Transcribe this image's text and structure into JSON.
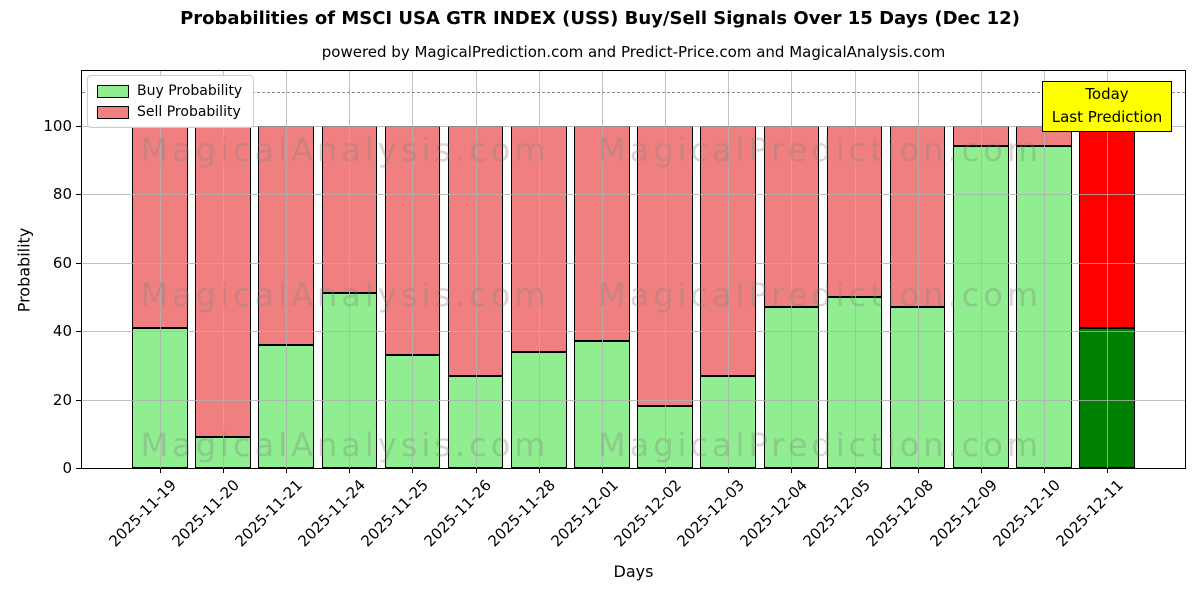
{
  "title": "Probabilities of MSCI USA GTR INDEX (USS) Buy/Sell Signals Over 15 Days (Dec 12)",
  "subtitle": "powered by MagicalPrediction.com and Predict-Price.com and MagicalAnalysis.com",
  "legend": {
    "items": [
      {
        "label": "Buy Probability",
        "color": "#90ee90"
      },
      {
        "label": "Sell Probability",
        "color": "#f08080"
      }
    ]
  },
  "today_box": {
    "line1": "Today",
    "line2": "Last Prediction",
    "bg_color": "#ffff00"
  },
  "axes": {
    "xlabel": "Days",
    "ylabel": "Probability",
    "yticks": [
      0,
      20,
      40,
      60,
      80,
      100
    ],
    "dashed_line_y": 110,
    "grid": true
  },
  "watermarks": {
    "left": "MagicalAnalysis.com",
    "right": "MagicalPrediction.com"
  },
  "colors": {
    "buy": "#90ee90",
    "sell": "#f08080",
    "buy_today": "#008000",
    "sell_today": "#ff0000",
    "bar_edge": "#000000",
    "grid": "#b0b0b0",
    "annotation_bg": "#ffff00"
  },
  "chart_data": {
    "type": "bar",
    "stacked": true,
    "title": "Probabilities of MSCI USA GTR INDEX (USS) Buy/Sell Signals Over 15 Days (Dec 12)",
    "xlabel": "Days",
    "ylabel": "Probability",
    "ylim": [
      0,
      116
    ],
    "grid": true,
    "legend_position": "upper left",
    "categories": [
      "2025-11-19",
      "2025-11-20",
      "2025-11-21",
      "2025-11-24",
      "2025-11-25",
      "2025-11-26",
      "2025-11-28",
      "2025-12-01",
      "2025-12-02",
      "2025-12-03",
      "2025-12-04",
      "2025-12-05",
      "2025-12-08",
      "2025-12-09",
      "2025-12-10",
      "2025-12-11"
    ],
    "series": [
      {
        "name": "Buy Probability",
        "color": "#90ee90",
        "today_color": "#008000",
        "values": [
          41,
          9,
          36,
          51,
          33,
          27,
          34,
          37,
          18,
          27,
          47,
          50,
          47,
          94,
          94,
          41
        ]
      },
      {
        "name": "Sell Probability",
        "color": "#f08080",
        "today_color": "#ff0000",
        "values": [
          59,
          91,
          64,
          49,
          67,
          73,
          66,
          63,
          82,
          73,
          53,
          50,
          53,
          6,
          6,
          59
        ]
      }
    ],
    "today_index": 15,
    "annotations": [
      {
        "text": "Today\nLast Prediction",
        "y": 110
      }
    ]
  }
}
